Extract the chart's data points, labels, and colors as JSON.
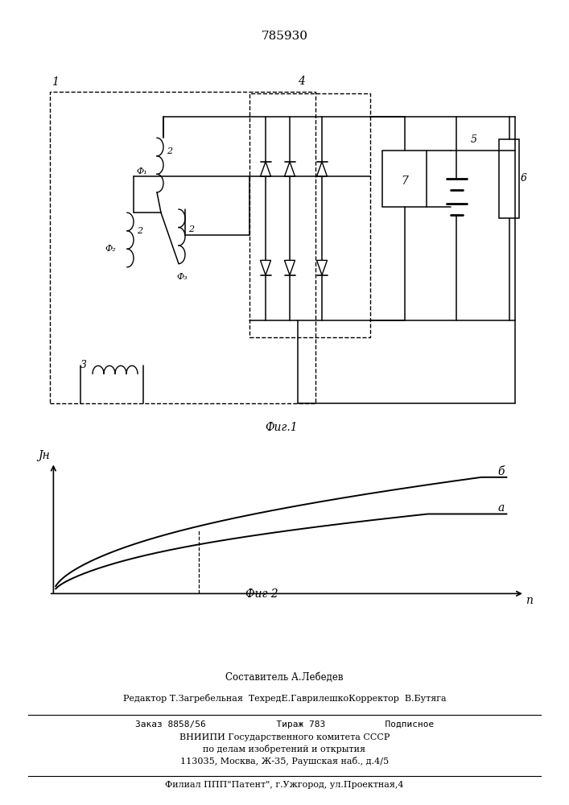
{
  "title": "785930",
  "fig1_caption": "Фиг.1",
  "fig2_caption": "Фиг 2",
  "ylabel": "Јн",
  "xlabel": "n",
  "curve_a_label": "a",
  "curve_b_label": "б",
  "footer_line1": "Составитель А.Лебедев",
  "footer_line2": "Редактор Т.Загребельная  ТехредЕ.ГаврилешкоКорректор  В.Бутяга",
  "footer_line3": "Заказ 8858/56             Тираж 783           Подписное",
  "footer_line4": "ВНИИПИ Государственного комитета СССР",
  "footer_line5": "по делам изобретений и открытия",
  "footer_line6": "113035, Москва, Ж-35, Раушская наб., д.4/5",
  "footer_line7": "Филиал ППП\"Патент\", г.Ужгород, ул.Проектная,4",
  "bg_color": "#ffffff",
  "line_color": "#000000"
}
